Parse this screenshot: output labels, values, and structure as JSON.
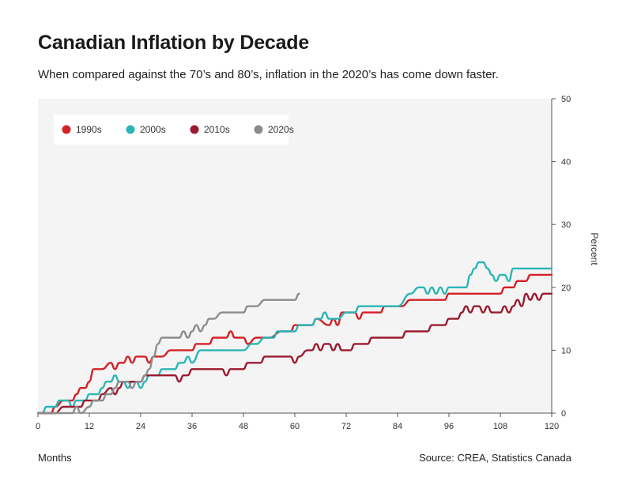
{
  "chart_data": {
    "type": "line",
    "title": "Canadian Inflation by Decade",
    "subtitle": "When compared against the 70’s and 80’s, inflation in the 2020’s has come down faster.",
    "xlabel": "Months",
    "ylabel": "Percent",
    "source": "Source: CREA, Statistics Canada",
    "xlim": [
      0,
      120
    ],
    "ylim": [
      0,
      50
    ],
    "x_ticks": [
      0,
      12,
      24,
      36,
      48,
      60,
      72,
      84,
      96,
      108,
      120
    ],
    "y_ticks": [
      0,
      10,
      20,
      30,
      40,
      50
    ],
    "y_axis_position": "right",
    "grid": false,
    "legend_position": "top-left",
    "series": [
      {
        "name": "1990s",
        "color": "#d42027",
        "points": [
          [
            0,
            0
          ],
          [
            3,
            0
          ],
          [
            4,
            1
          ],
          [
            6,
            2
          ],
          [
            8,
            2
          ],
          [
            9,
            3
          ],
          [
            10,
            4
          ],
          [
            11,
            4
          ],
          [
            12,
            5
          ],
          [
            13,
            7
          ],
          [
            15,
            7
          ],
          [
            17,
            8
          ],
          [
            18,
            7
          ],
          [
            19,
            8
          ],
          [
            20,
            8
          ],
          [
            21,
            9
          ],
          [
            22,
            8
          ],
          [
            23,
            9
          ],
          [
            25,
            9
          ],
          [
            26,
            8
          ],
          [
            27,
            9
          ],
          [
            29,
            9
          ],
          [
            31,
            10
          ],
          [
            36,
            10
          ],
          [
            37,
            11
          ],
          [
            40,
            11
          ],
          [
            41,
            12
          ],
          [
            44,
            12
          ],
          [
            45,
            13
          ],
          [
            46,
            12
          ],
          [
            48,
            12
          ],
          [
            49,
            11
          ],
          [
            51,
            12
          ],
          [
            54,
            12
          ],
          [
            57,
            13
          ],
          [
            59,
            13
          ],
          [
            60,
            14
          ],
          [
            64,
            14
          ],
          [
            65,
            15
          ],
          [
            68,
            14
          ],
          [
            69,
            15
          ],
          [
            70,
            14
          ],
          [
            71,
            16
          ],
          [
            74,
            16
          ],
          [
            75,
            15
          ],
          [
            76,
            16
          ],
          [
            80,
            16
          ],
          [
            81,
            17
          ],
          [
            85,
            17
          ],
          [
            87,
            18
          ],
          [
            95,
            18
          ],
          [
            96,
            19
          ],
          [
            108,
            19
          ],
          [
            109,
            20
          ],
          [
            111,
            20
          ],
          [
            112,
            21
          ],
          [
            114,
            21
          ],
          [
            115,
            22
          ],
          [
            120,
            22
          ]
        ]
      },
      {
        "name": "2000s",
        "color": "#2bb5b5",
        "points": [
          [
            0,
            0
          ],
          [
            1,
            0
          ],
          [
            2,
            1
          ],
          [
            4,
            1
          ],
          [
            5,
            2
          ],
          [
            7,
            2
          ],
          [
            8,
            1
          ],
          [
            9,
            2
          ],
          [
            11,
            2
          ],
          [
            12,
            3
          ],
          [
            13,
            3
          ],
          [
            14,
            3
          ],
          [
            15,
            4
          ],
          [
            16,
            5
          ],
          [
            17,
            5
          ],
          [
            18,
            6
          ],
          [
            19,
            5
          ],
          [
            20,
            5
          ],
          [
            21,
            4
          ],
          [
            22,
            5
          ],
          [
            23,
            5
          ],
          [
            24,
            4
          ],
          [
            25,
            5
          ],
          [
            26,
            6
          ],
          [
            28,
            6
          ],
          [
            29,
            7
          ],
          [
            30,
            7
          ],
          [
            32,
            7
          ],
          [
            33,
            8
          ],
          [
            34,
            8
          ],
          [
            35,
            9
          ],
          [
            36,
            8
          ],
          [
            38,
            10
          ],
          [
            45,
            10
          ],
          [
            48,
            10
          ],
          [
            50,
            11
          ],
          [
            51,
            11
          ],
          [
            53,
            12
          ],
          [
            55,
            12
          ],
          [
            56,
            13
          ],
          [
            59,
            13
          ],
          [
            60,
            13
          ],
          [
            61,
            14
          ],
          [
            64,
            14
          ],
          [
            65,
            15
          ],
          [
            66,
            15
          ],
          [
            67,
            16
          ],
          [
            68,
            15
          ],
          [
            70,
            15
          ],
          [
            72,
            16
          ],
          [
            74,
            16
          ],
          [
            75,
            17
          ],
          [
            84,
            17
          ],
          [
            87,
            19
          ],
          [
            89,
            20
          ],
          [
            90,
            20
          ],
          [
            91,
            19
          ],
          [
            92,
            20
          ],
          [
            93,
            19
          ],
          [
            94,
            20
          ],
          [
            95,
            19
          ],
          [
            96,
            20
          ],
          [
            100,
            20
          ],
          [
            101,
            22
          ],
          [
            102,
            23
          ],
          [
            103,
            24
          ],
          [
            104,
            24
          ],
          [
            105,
            23
          ],
          [
            106,
            22
          ],
          [
            107,
            21
          ],
          [
            108,
            22
          ],
          [
            109,
            22
          ],
          [
            110,
            21
          ],
          [
            111,
            23
          ],
          [
            120,
            23
          ]
        ]
      },
      {
        "name": "2010s",
        "color": "#9b1b30",
        "points": [
          [
            0,
            0
          ],
          [
            4,
            0
          ],
          [
            6,
            1
          ],
          [
            10,
            1
          ],
          [
            11,
            2
          ],
          [
            14,
            2
          ],
          [
            15,
            3
          ],
          [
            17,
            4
          ],
          [
            18,
            3
          ],
          [
            19,
            4
          ],
          [
            20,
            5
          ],
          [
            23,
            5
          ],
          [
            24,
            5
          ],
          [
            25,
            6
          ],
          [
            32,
            6
          ],
          [
            33,
            5
          ],
          [
            34,
            6
          ],
          [
            35,
            6
          ],
          [
            36,
            7
          ],
          [
            42,
            7
          ],
          [
            43,
            7
          ],
          [
            44,
            6
          ],
          [
            45,
            7
          ],
          [
            48,
            7
          ],
          [
            49,
            8
          ],
          [
            52,
            8
          ],
          [
            53,
            9
          ],
          [
            59,
            9
          ],
          [
            60,
            8
          ],
          [
            61,
            9
          ],
          [
            63,
            10
          ],
          [
            64,
            10
          ],
          [
            65,
            11
          ],
          [
            66,
            10
          ],
          [
            67,
            11
          ],
          [
            68,
            11
          ],
          [
            69,
            10
          ],
          [
            70,
            11
          ],
          [
            71,
            10
          ],
          [
            73,
            10
          ],
          [
            74,
            11
          ],
          [
            77,
            11
          ],
          [
            78,
            12
          ],
          [
            85,
            12
          ],
          [
            86,
            13
          ],
          [
            91,
            13
          ],
          [
            92,
            14
          ],
          [
            95,
            14
          ],
          [
            96,
            15
          ],
          [
            98,
            15
          ],
          [
            99,
            16
          ],
          [
            100,
            17
          ],
          [
            101,
            16
          ],
          [
            102,
            17
          ],
          [
            103,
            17
          ],
          [
            104,
            16
          ],
          [
            105,
            17
          ],
          [
            106,
            16
          ],
          [
            108,
            16
          ],
          [
            109,
            17
          ],
          [
            110,
            16
          ],
          [
            111,
            17
          ],
          [
            112,
            18
          ],
          [
            113,
            17
          ],
          [
            114,
            19
          ],
          [
            115,
            18
          ],
          [
            116,
            19
          ],
          [
            117,
            18
          ],
          [
            118,
            19
          ],
          [
            120,
            19
          ]
        ]
      },
      {
        "name": "2020s",
        "color": "#8c8c8c",
        "points": [
          [
            0,
            0
          ],
          [
            6,
            0
          ],
          [
            8,
            0
          ],
          [
            9,
            1
          ],
          [
            10,
            0
          ],
          [
            12,
            1
          ],
          [
            13,
            2
          ],
          [
            15,
            2
          ],
          [
            16,
            3
          ],
          [
            17,
            3
          ],
          [
            18,
            4
          ],
          [
            19,
            5
          ],
          [
            21,
            5
          ],
          [
            22,
            4
          ],
          [
            23,
            5
          ],
          [
            24,
            5
          ],
          [
            25,
            6
          ],
          [
            26,
            7
          ],
          [
            27,
            9
          ],
          [
            28,
            11
          ],
          [
            29,
            12
          ],
          [
            31,
            12
          ],
          [
            32,
            12
          ],
          [
            33,
            12
          ],
          [
            34,
            13
          ],
          [
            35,
            12
          ],
          [
            36,
            13
          ],
          [
            37,
            14
          ],
          [
            38,
            13
          ],
          [
            39,
            14
          ],
          [
            40,
            15
          ],
          [
            41,
            15
          ],
          [
            43,
            16
          ],
          [
            48,
            16
          ],
          [
            49,
            17
          ],
          [
            51,
            17
          ],
          [
            53,
            18
          ],
          [
            58,
            18
          ],
          [
            59,
            18
          ],
          [
            60,
            18
          ],
          [
            61,
            19
          ]
        ]
      }
    ]
  }
}
